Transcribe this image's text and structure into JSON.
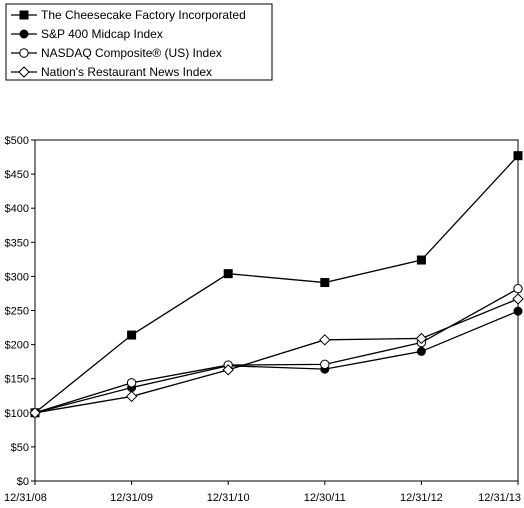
{
  "chart_data": {
    "type": "line",
    "title": "",
    "xlabel": "",
    "ylabel": "",
    "categories": [
      "12/31/08",
      "12/31/09",
      "12/31/10",
      "12/30/11",
      "12/31/12",
      "12/31/13"
    ],
    "ylim": [
      0,
      500
    ],
    "yticks": [
      "$0",
      "$50",
      "$100",
      "$150",
      "$200",
      "$250",
      "$300",
      "$350",
      "$400",
      "$450",
      "$500"
    ],
    "grid": false,
    "legend_position": "top-left",
    "series": [
      {
        "name": "The Cheesecake Factory Incorporated",
        "marker": "square-filled",
        "values": [
          100,
          214,
          304,
          291,
          324,
          477
        ]
      },
      {
        "name": "S&P 400 Midcap Index",
        "marker": "circle-filled",
        "values": [
          100,
          137,
          169,
          164,
          190,
          249
        ]
      },
      {
        "name": "NASDAQ Composite® (US) Index",
        "marker": "circle-open",
        "values": [
          100,
          144,
          170,
          171,
          203,
          282
        ]
      },
      {
        "name": "Nation's Restaurant News Index",
        "marker": "diamond-open",
        "values": [
          100,
          124,
          163,
          207,
          209,
          267
        ]
      }
    ],
    "colors": {
      "line": "#000000",
      "frame": "#000000",
      "background": "#ffffff"
    }
  }
}
